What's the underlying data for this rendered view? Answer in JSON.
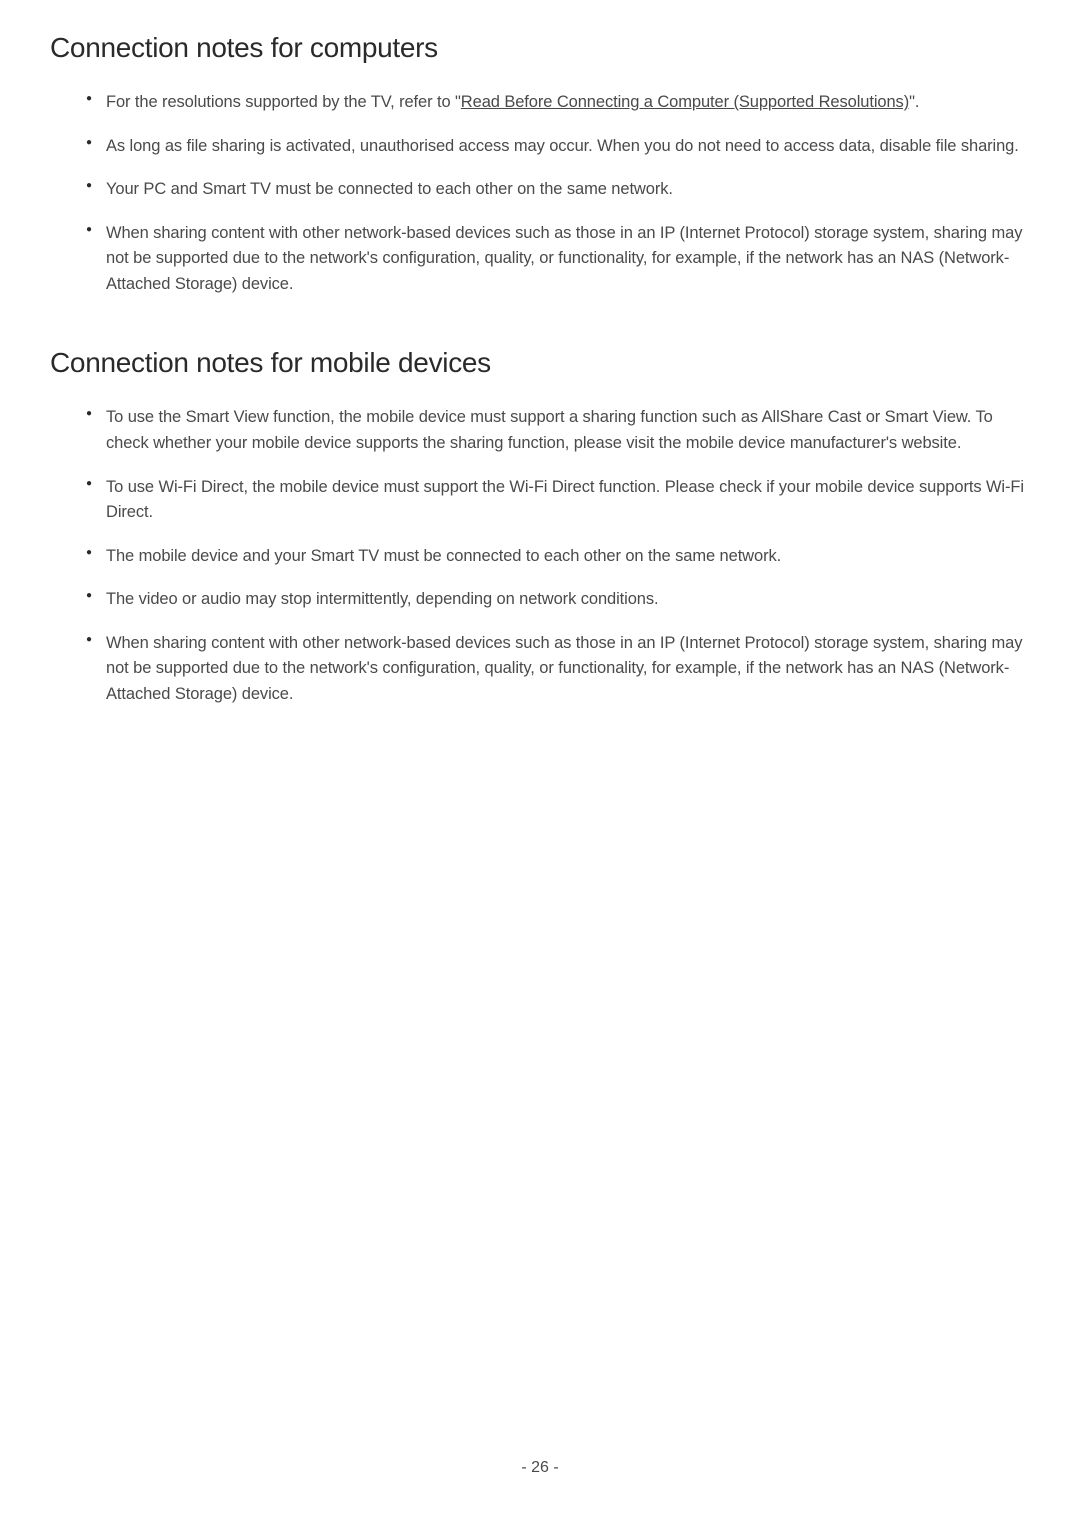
{
  "section1": {
    "heading": "Connection notes for computers",
    "items": [
      {
        "prefix": "For the resolutions supported by the TV, refer to \"",
        "link": "Read Before Connecting a Computer (Supported Resolutions)",
        "suffix": "\"."
      },
      {
        "text": "As long as file sharing is activated, unauthorised access may occur. When you do not need to access data, disable file sharing."
      },
      {
        "text": "Your PC and Smart TV must be connected to each other on the same network."
      },
      {
        "text": "When sharing content with other network-based devices such as those in an IP (Internet Protocol) storage system, sharing may not be supported due to the network's configuration, quality, or functionality, for example, if the network has an NAS (Network-Attached Storage) device."
      }
    ]
  },
  "section2": {
    "heading": "Connection notes for mobile devices",
    "items": [
      {
        "text": "To use the Smart View function, the mobile device must support a sharing function such as AllShare Cast or Smart View. To check whether your mobile device supports the sharing function, please visit the mobile device manufacturer's website."
      },
      {
        "text": "To use Wi-Fi Direct, the mobile device must support the Wi-Fi Direct function. Please check if your mobile device supports Wi-Fi Direct."
      },
      {
        "text": "The mobile device and your Smart TV must be connected to each other on the same network."
      },
      {
        "text": "The video or audio may stop intermittently, depending on network conditions."
      },
      {
        "text": "When sharing content with other network-based devices such as those in an IP (Internet Protocol) storage system, sharing may not be supported due to the network's configuration, quality, or functionality, for example, if the network has an NAS (Network-Attached Storage) device."
      }
    ]
  },
  "pageNumber": "- 26 -",
  "colors": {
    "background": "#ffffff",
    "headingText": "#2a2a2a",
    "bodyText": "#4a4a4a"
  },
  "typography": {
    "headingSize": 28,
    "bodySize": 16.5,
    "lineHeight": 1.55
  }
}
